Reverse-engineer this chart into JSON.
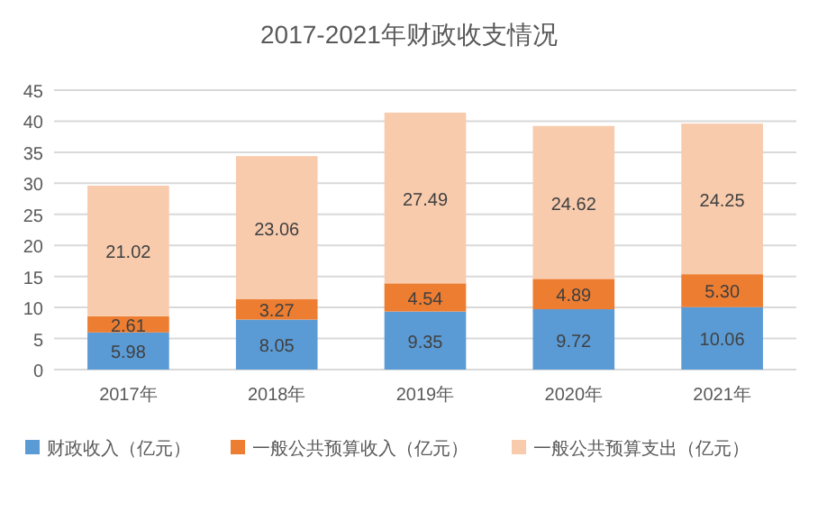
{
  "chart_data": {
    "type": "bar",
    "title": "2017-2021年财政收支情况",
    "stacked": true,
    "categories": [
      "2017年",
      "2018年",
      "2019年",
      "2020年",
      "2021年"
    ],
    "series": [
      {
        "name": "财政收入（亿元）",
        "color": "#5b9bd5",
        "values": [
          5.98,
          8.05,
          9.35,
          9.72,
          10.06
        ],
        "value_labels": [
          "5.98",
          "8.05",
          "9.35",
          "9.72",
          "10.06"
        ]
      },
      {
        "name": "一般公共预算收入（亿元）",
        "color": "#ed7d31",
        "values": [
          2.61,
          3.27,
          4.54,
          4.89,
          5.3
        ],
        "value_labels": [
          "2.61",
          "3.27",
          "4.54",
          "4.89",
          "5.30"
        ]
      },
      {
        "name": "一般公共预算支出（亿元）",
        "color": "#f8cbad",
        "values": [
          21.02,
          23.06,
          27.49,
          24.62,
          24.25
        ],
        "value_labels": [
          "21.02",
          "23.06",
          "27.49",
          "24.62",
          "24.25"
        ]
      }
    ],
    "ylim": [
      0,
      45
    ],
    "yticks": [
      0,
      5,
      10,
      15,
      20,
      25,
      30,
      35,
      40,
      45
    ],
    "grid": "y",
    "legend": "bottom"
  }
}
